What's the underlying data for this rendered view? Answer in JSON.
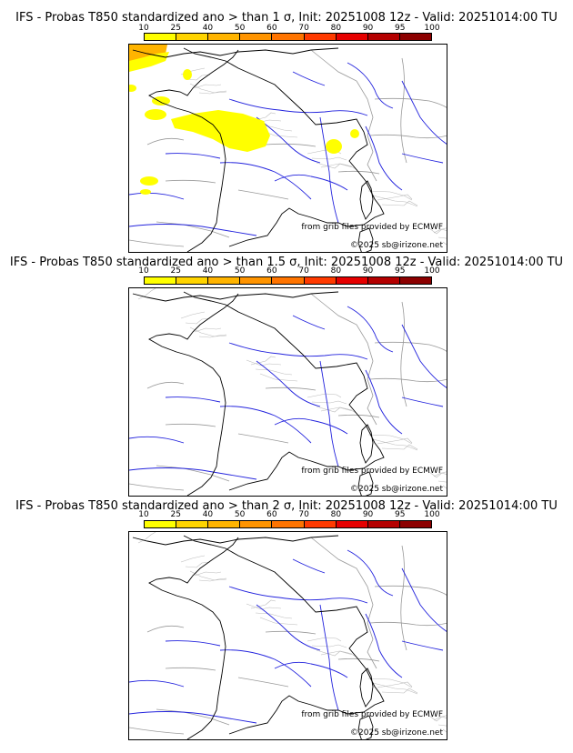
{
  "colorbar": {
    "ticks": [
      "10",
      "25",
      "40",
      "50",
      "60",
      "70",
      "80",
      "90",
      "95",
      "100"
    ],
    "colors": [
      "#ffff00",
      "#ffd400",
      "#ffb400",
      "#ff9400",
      "#ff7400",
      "#ff3a00",
      "#e60000",
      "#b40000",
      "#8c0000",
      "#5a0000"
    ]
  },
  "panels": [
    {
      "title": "IFS - Probas T850  standardized ano > than 1 σ, Init: 20251008 12z - Valid: 20251014:00 TU",
      "has_anomaly": true
    },
    {
      "title": "IFS - Probas T850  standardized ano > than 1.5 σ, Init: 20251008 12z - Valid: 20251014:00 TU",
      "has_anomaly": false
    },
    {
      "title": "IFS - Probas T850  standardized ano > than 2 σ, Init: 20251008 12z - Valid: 20251014:00 TU",
      "has_anomaly": false
    }
  ],
  "credit_source": "from grib files provided by ECMWF",
  "credit_copyright": "©2025 sb@irizone.net",
  "map_colors": {
    "coast": "#000000",
    "borders": "#999999",
    "rivers": "#2222dd",
    "anomaly": "#ffff00",
    "anomaly_high": "#ffb400"
  }
}
